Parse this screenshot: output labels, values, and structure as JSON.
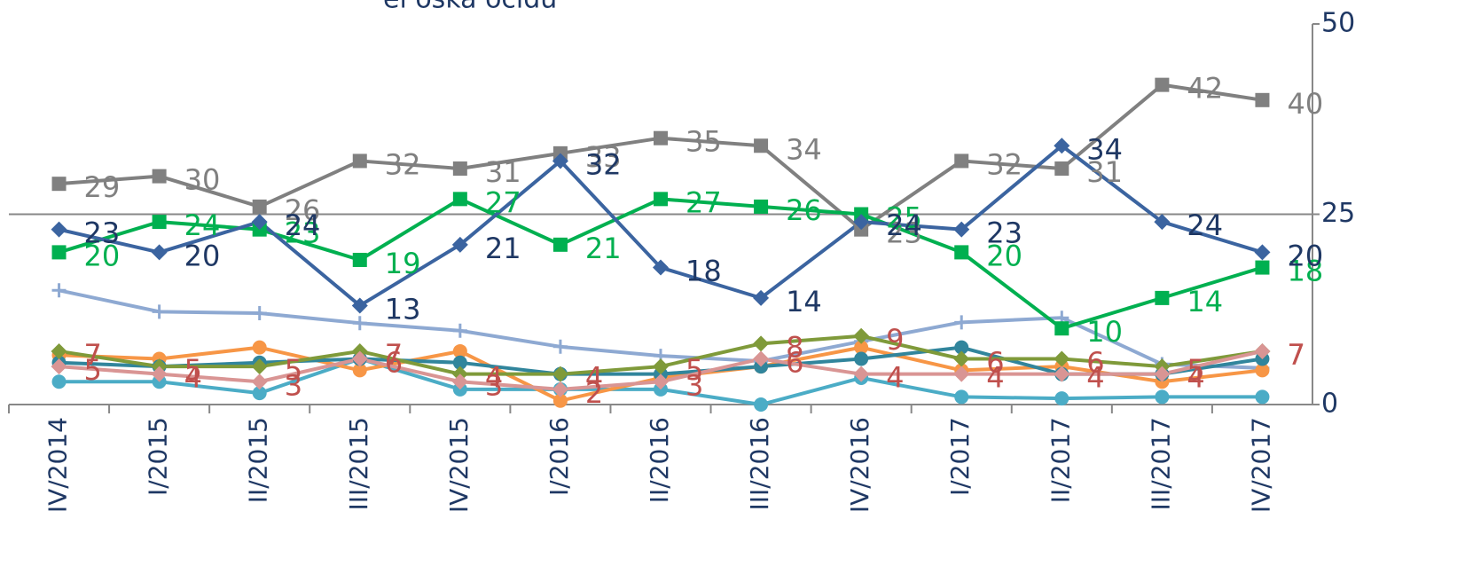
{
  "chart_data": {
    "type": "line",
    "title": "el’oska očidu",
    "categories": [
      "IV/2014",
      "I/2015",
      "II/2015",
      "III/2015",
      "IV/2015",
      "I/2016",
      "II/2016",
      "III/2016",
      "IV/2016",
      "I/2017",
      "II/2017",
      "III/2017",
      "IV/2017"
    ],
    "ylim": [
      0,
      50
    ],
    "yticks": [
      0,
      25,
      50
    ],
    "grid": true,
    "y_axis_side": "right",
    "series": [
      {
        "color": "#8ea9d2",
        "marker": "plus",
        "values": [
          15,
          12.2,
          12,
          10.7,
          9.7,
          7.6,
          6.4,
          5.7,
          8.3,
          10.8,
          11.4,
          5.3,
          4.8
        ]
      },
      {
        "color": "#4bacc6",
        "marker": "circle",
        "values": [
          3,
          3,
          1.5,
          6,
          2,
          2,
          2,
          0,
          3.5,
          1,
          0.8,
          1,
          1
        ]
      },
      {
        "color": "#f79646",
        "marker": "circle",
        "values": [
          6.5,
          6,
          7.5,
          4.5,
          7,
          0.5,
          3.5,
          5,
          7.5,
          4.5,
          5,
          3,
          4.5
        ]
      },
      {
        "color": "#31859c",
        "marker": "circle",
        "values": [
          5.5,
          5,
          5.5,
          6,
          5.5,
          4,
          4,
          5,
          6,
          7.5,
          4,
          4,
          6
        ]
      },
      {
        "color": "#7f9a3a",
        "marker": "diamond",
        "label_color": "#c0504d",
        "data_labels": true,
        "values": [
          7,
          5,
          5,
          7,
          4,
          4,
          5,
          8,
          9,
          6,
          6,
          5,
          7
        ]
      },
      {
        "color": "#d99594",
        "marker": "diamond",
        "label_color": "#c0504d",
        "data_labels": true,
        "values": [
          5,
          4,
          3,
          6,
          3,
          2,
          3,
          6,
          4,
          4,
          4,
          4,
          7
        ]
      },
      {
        "color": "#808080",
        "marker": "square",
        "label_color": "#808080",
        "data_labels": true,
        "values": [
          29,
          30,
          26,
          32,
          31,
          33,
          35,
          34,
          23,
          32,
          31,
          42,
          40
        ]
      },
      {
        "color": "#00b050",
        "marker": "square",
        "label_color": "#00b050",
        "data_labels": true,
        "values": [
          20,
          24,
          23,
          19,
          27,
          21,
          27,
          26,
          25,
          20,
          10,
          14,
          18
        ]
      },
      {
        "color": "#3b64a0",
        "marker": "diamond",
        "label_color": "#1f3864",
        "data_labels": true,
        "values": [
          23,
          20,
          24,
          13,
          21,
          32,
          18,
          14,
          24,
          23,
          34,
          24,
          20
        ]
      }
    ]
  }
}
